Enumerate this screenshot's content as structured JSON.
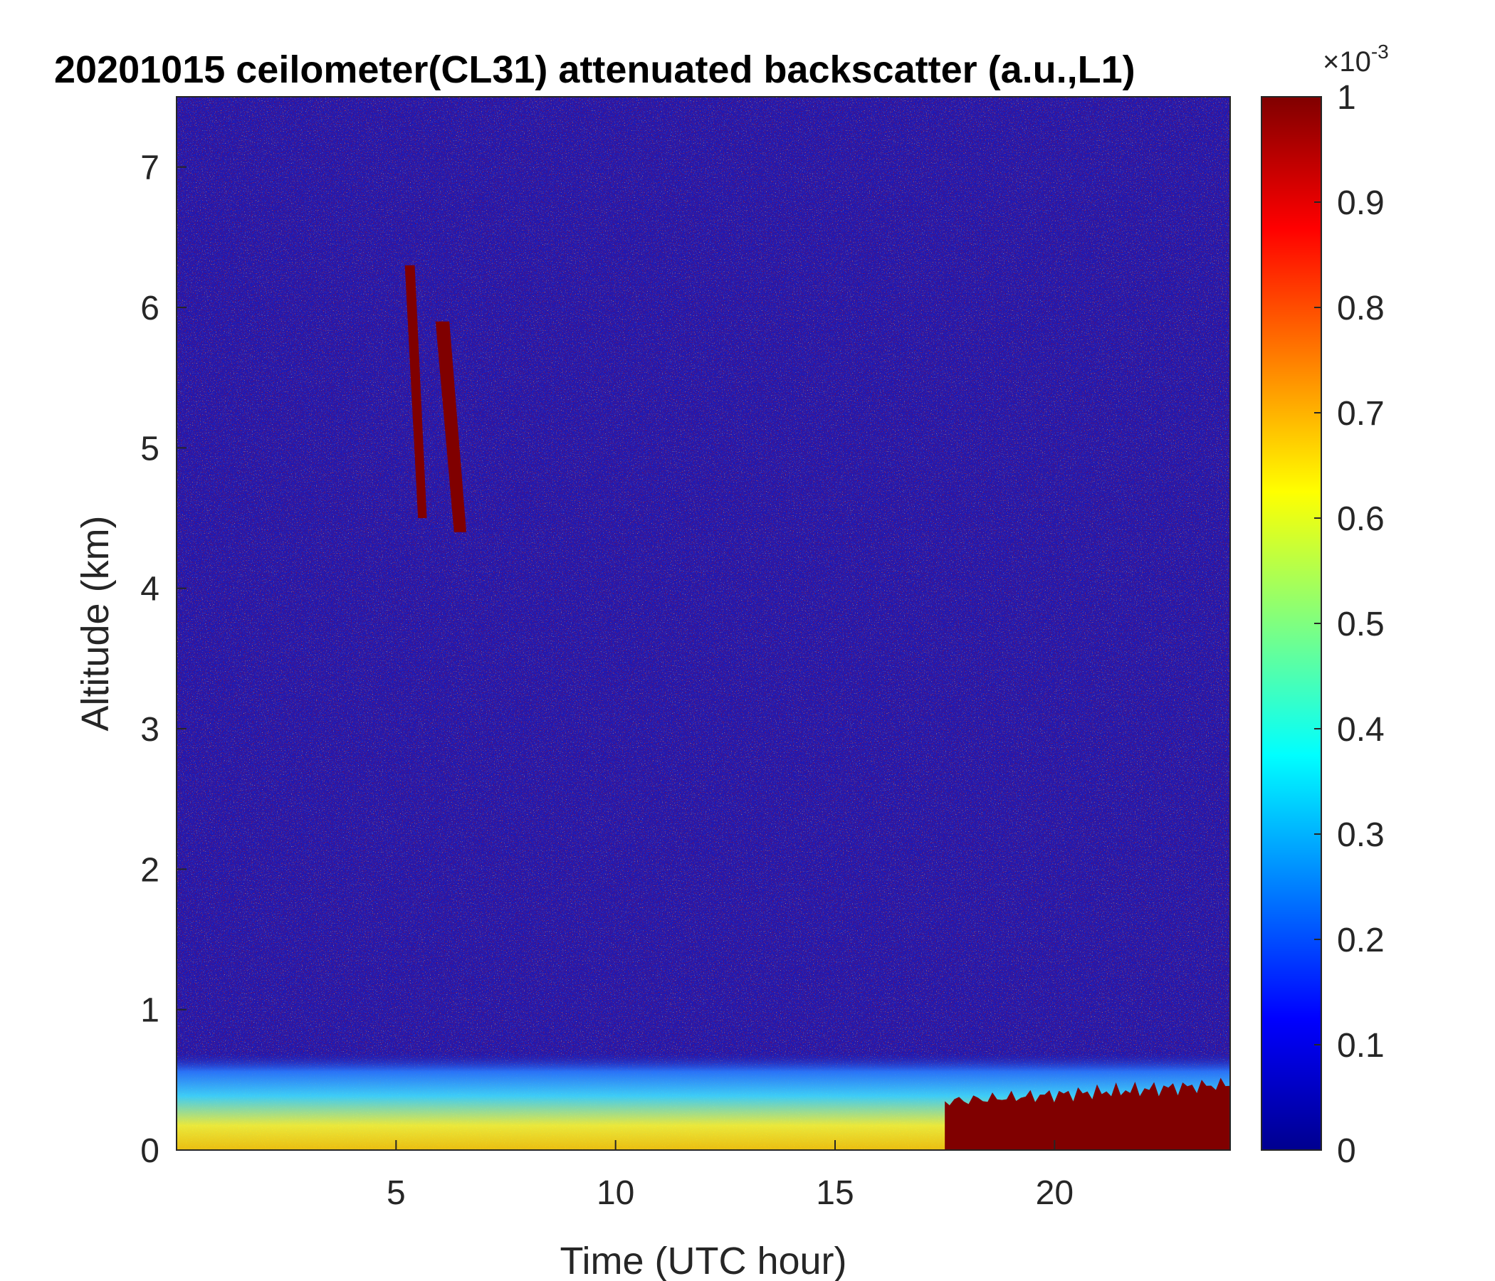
{
  "chart_data": {
    "type": "heatmap",
    "title": "20201015 ceilometer(CL31) attenuated backscatter (a.u.,L1)",
    "xlabel": "Time (UTC hour)",
    "ylabel": "Altitude (km)",
    "xlim": [
      0,
      24
    ],
    "ylim": [
      0,
      7.5
    ],
    "xticks": [
      5,
      10,
      15,
      20
    ],
    "yticks": [
      0,
      1,
      2,
      3,
      4,
      5,
      6,
      7
    ],
    "colorbar": {
      "colormap": "jet",
      "exponent_label": "×10",
      "exponent_power": "-3",
      "ticks": [
        0,
        0.1,
        0.2,
        0.3,
        0.4,
        0.5,
        0.6,
        0.7,
        0.8,
        0.9,
        1
      ],
      "range": [
        0,
        1
      ]
    },
    "features": [
      {
        "kind": "boundary-layer-aerosol",
        "x_range": [
          0,
          24
        ],
        "altitude_km": [
          0,
          0.7
        ],
        "value_approx": 0.55
      },
      {
        "kind": "low-cloud",
        "x_range": [
          17.5,
          24
        ],
        "altitude_km": [
          0,
          0.5
        ],
        "value_approx": 1.0
      },
      {
        "kind": "cirrus-streak",
        "x_range": [
          5.2,
          5.7
        ],
        "altitude_km": [
          4.5,
          6.3
        ],
        "value_approx": 1.0
      },
      {
        "kind": "cirrus-streak",
        "x_range": [
          5.9,
          6.6
        ],
        "altitude_km": [
          4.4,
          5.9
        ],
        "value_approx": 1.0
      },
      {
        "kind": "noise-background",
        "x_range": [
          0,
          24
        ],
        "altitude_km": [
          1,
          7.5
        ],
        "value_approx": 0.2
      }
    ]
  }
}
